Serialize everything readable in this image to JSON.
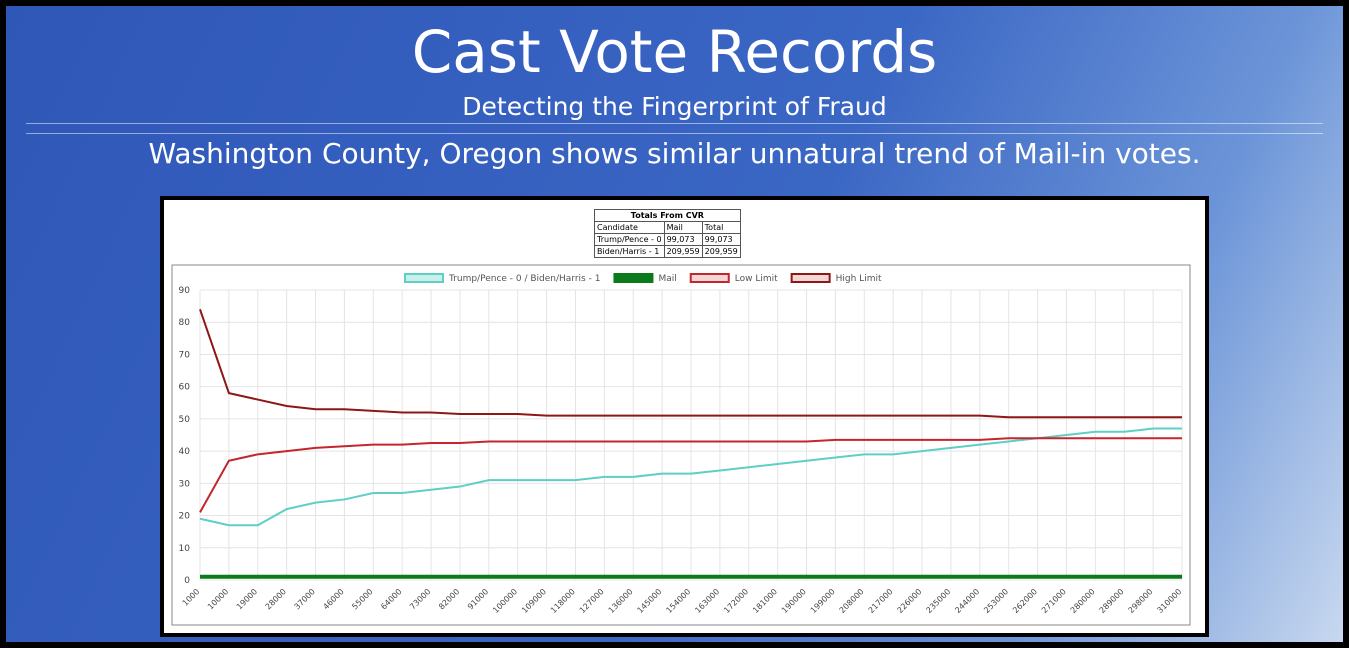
{
  "slide": {
    "title": "Cast Vote Records",
    "subtitle": "Detecting the Fingerprint of Fraud",
    "heading": "Washington County, Oregon shows similar unnatural trend of Mail-in votes."
  },
  "table": {
    "title": "Totals From CVR",
    "header": [
      "Candidate",
      "Mail",
      "Total"
    ],
    "rows": [
      [
        "Trump/Pence - 0",
        "99,073",
        "99,073"
      ],
      [
        "Biden/Harris - 1",
        "209,959",
        "209,959"
      ]
    ]
  },
  "chart_data": {
    "type": "line",
    "categories": [
      "1000",
      "10000",
      "19000",
      "28000",
      "37000",
      "46000",
      "55000",
      "64000",
      "73000",
      "82000",
      "91000",
      "100000",
      "109000",
      "118000",
      "127000",
      "136000",
      "145000",
      "154000",
      "163000",
      "172000",
      "181000",
      "190000",
      "199000",
      "208000",
      "217000",
      "226000",
      "235000",
      "244000",
      "253000",
      "262000",
      "271000",
      "280000",
      "289000",
      "298000",
      "310000"
    ],
    "series": [
      {
        "name": "Trump/Pence - 0 / Biden/Harris - 1",
        "color": "#5fcfc4",
        "values": [
          19,
          17,
          17,
          22,
          24,
          25,
          27,
          27,
          28,
          29,
          31,
          31,
          31,
          31,
          32,
          32,
          33,
          33,
          34,
          35,
          36,
          37,
          38,
          39,
          39,
          40,
          41,
          42,
          43,
          44,
          45,
          46,
          46,
          47,
          47
        ]
      },
      {
        "name": "Mail",
        "color": "#0a7a1a",
        "values": [
          1,
          1,
          1,
          1,
          1,
          1,
          1,
          1,
          1,
          1,
          1,
          1,
          1,
          1,
          1,
          1,
          1,
          1,
          1,
          1,
          1,
          1,
          1,
          1,
          1,
          1,
          1,
          1,
          1,
          1,
          1,
          1,
          1,
          1,
          1
        ]
      },
      {
        "name": "Low Limit",
        "color": "#c3262c",
        "values": [
          21,
          37,
          39,
          40,
          41,
          41.5,
          42,
          42,
          42.5,
          42.5,
          43,
          43,
          43,
          43,
          43,
          43,
          43,
          43,
          43,
          43,
          43,
          43,
          43.5,
          43.5,
          43.5,
          43.5,
          43.5,
          43.5,
          44,
          44,
          44,
          44,
          44,
          44,
          44
        ]
      },
      {
        "name": "High Limit",
        "color": "#8e1616",
        "values": [
          84,
          58,
          56,
          54,
          53,
          53,
          52.5,
          52,
          52,
          51.5,
          51.5,
          51.5,
          51,
          51,
          51,
          51,
          51,
          51,
          51,
          51,
          51,
          51,
          51,
          51,
          51,
          51,
          51,
          51,
          50.5,
          50.5,
          50.5,
          50.5,
          50.5,
          50.5,
          50.5
        ]
      }
    ],
    "ylim": [
      0,
      90
    ],
    "yticks": [
      0,
      10,
      20,
      30,
      40,
      50,
      60,
      70,
      80,
      90
    ],
    "grid": true,
    "legend": "top"
  }
}
